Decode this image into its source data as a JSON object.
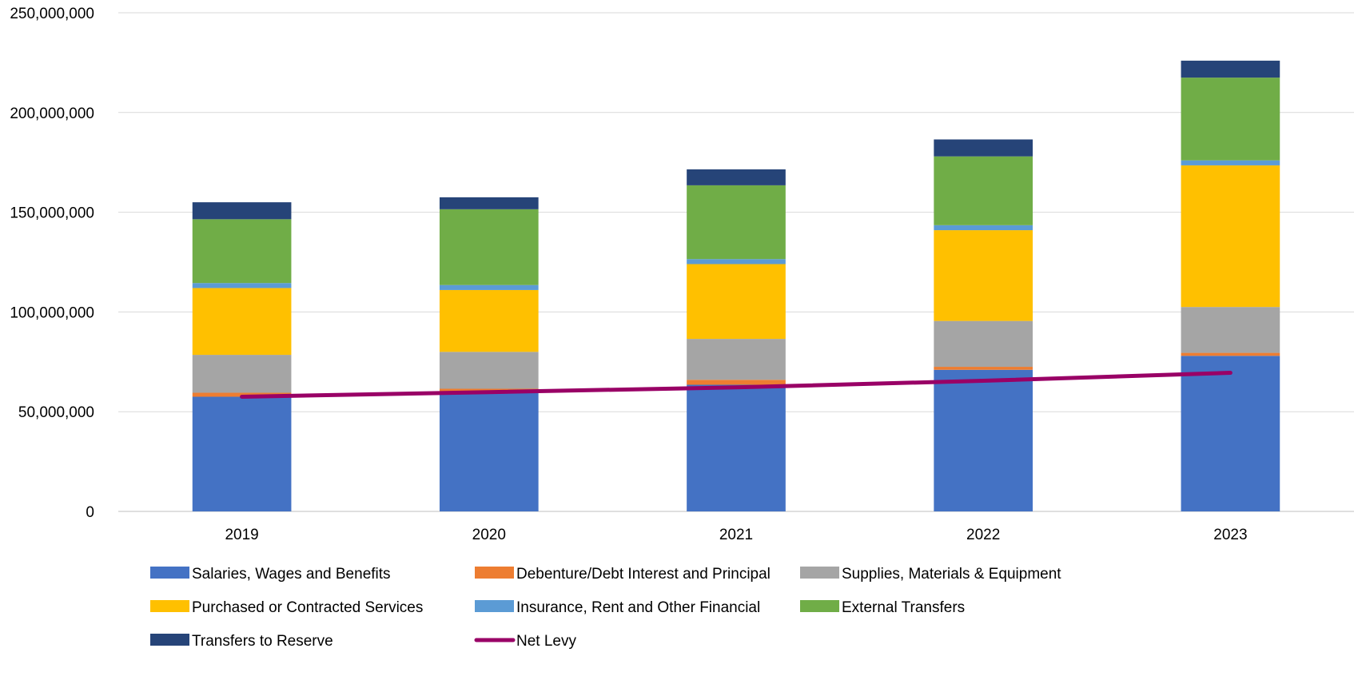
{
  "chart_data": {
    "type": "bar",
    "stacked": true,
    "title": "",
    "xlabel": "",
    "ylabel": "",
    "ylim": [
      0,
      250000000
    ],
    "yticks": [
      0,
      50000000,
      100000000,
      150000000,
      200000000,
      250000000
    ],
    "ytick_labels": [
      "0",
      "50,000,000",
      "100,000,000",
      "150,000,000",
      "200,000,000",
      "250,000,000"
    ],
    "grid": "horizontal",
    "legend_position": "bottom",
    "categories": [
      "2019",
      "2020",
      "2021",
      "2022",
      "2023"
    ],
    "series": [
      {
        "name": "Salaries, Wages and Benefits",
        "color": "#4472C4",
        "values": [
          57500000,
          60000000,
          63500000,
          71000000,
          78000000
        ]
      },
      {
        "name": "Debenture/Debt Interest and Principal",
        "color": "#ED7D31",
        "values": [
          2000000,
          1500000,
          2500000,
          1500000,
          1500000
        ]
      },
      {
        "name": "Supplies, Materials & Equipment",
        "color": "#A5A5A5",
        "values": [
          19000000,
          18500000,
          20500000,
          23000000,
          23000000
        ]
      },
      {
        "name": "Purchased or Contracted Services",
        "color": "#FFC000",
        "values": [
          33500000,
          31000000,
          37500000,
          45500000,
          71000000
        ]
      },
      {
        "name": "Insurance, Rent and Other Financial",
        "color": "#5B9BD5",
        "values": [
          2500000,
          2500000,
          2500000,
          2500000,
          2500000
        ]
      },
      {
        "name": "External Transfers",
        "color": "#70AD47",
        "values": [
          32000000,
          38000000,
          37000000,
          34500000,
          41500000
        ]
      },
      {
        "name": "Transfers to Reserve",
        "color": "#264478",
        "values": [
          8500000,
          6000000,
          8000000,
          8500000,
          8500000
        ]
      }
    ],
    "line_series": [
      {
        "name": "Net Levy",
        "color": "#990066",
        "values": [
          57500000,
          59800000,
          62200000,
          65500000,
          69500000
        ]
      }
    ]
  }
}
